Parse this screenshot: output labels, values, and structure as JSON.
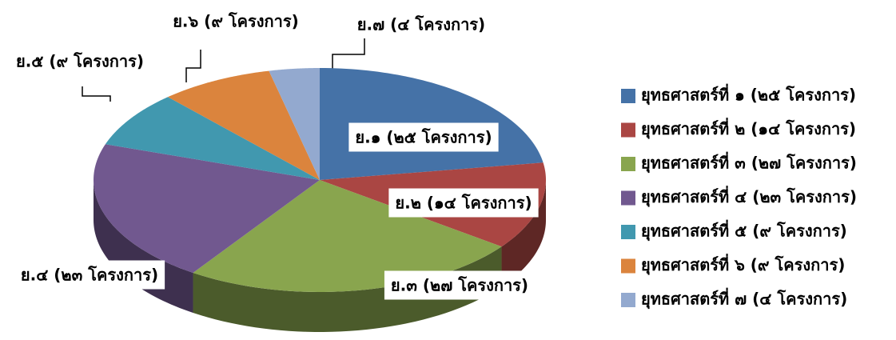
{
  "chart_data": {
    "type": "pie",
    "categories": [
      "ยุทธศาสตร์ที่ ๑ (๒๕ โครงการ)",
      "ยุทธศาสตร์ที่ ๒ (๑๔ โครงการ)",
      "ยุทธศาสตร์ที่ ๓ (๒๗ โครงการ)",
      "ยุทธศาสตร์ที่ ๔ (๒๓ โครงการ)",
      "ยุทธศาสตร์ที่ ๕ (๙ โครงการ)",
      "ยุทธศาสตร์ที่ ๖ (๙ โครงการ)",
      "ยุทธศาสตร์ที่ ๗ (๔ โครงการ)"
    ],
    "values": [
      25,
      14,
      27,
      23,
      9,
      9,
      4
    ],
    "value_labels": [
      "ย.๑ (๒๕ โครงการ)",
      "ย.๒ (๑๔ โครงการ)",
      "ย.๓ (๒๗ โครงการ)",
      "ย.๔ (๒๓ โครงการ)",
      "ย.๕ (๙ โครงการ)",
      "ย.๖ (๙ โครงการ)",
      "ย.๗ (๔ โครงการ)"
    ],
    "colors": [
      "#4572a7",
      "#aa4643",
      "#89a54e",
      "#71588f",
      "#4198af",
      "#db843d",
      "#93a9cf"
    ],
    "legend": "right"
  }
}
